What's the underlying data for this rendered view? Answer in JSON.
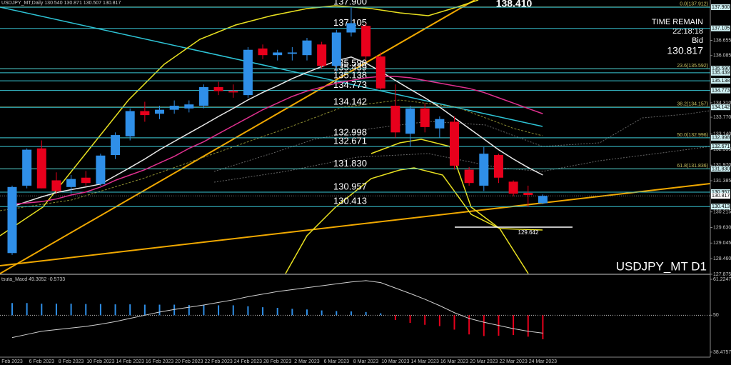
{
  "chart_data": [
    {
      "type": "candlestick",
      "title": "USDJPY_MT,Daily 130.540 130.871 130.507 130.817",
      "symbol_label": "USDJPY_MT D1",
      "info": [
        "TIME REMAIN",
        "22:18:18",
        "Bid"
      ],
      "bid": {
        "value": 130.817,
        "label": "130.817"
      },
      "categories": [
        "Feb 2023",
        null,
        "6 Feb 2023",
        null,
        "8 Feb 2023",
        null,
        "10 Feb 2023",
        null,
        "14 Feb 2023",
        null,
        "16 Feb 2023",
        null,
        "20 Feb 2023",
        null,
        "22 Feb 2023",
        null,
        "24 Feb 2023",
        null,
        "28 Feb 2023",
        null,
        "2 Mar 2023",
        null,
        "6 Mar 2023",
        null,
        "8 Mar 2023",
        null,
        "10 Mar 2023",
        null,
        "14 Mar 2023",
        null,
        "16 Mar 2023",
        null,
        "20 Mar 2023",
        null,
        "22 Mar 2023",
        null,
        "24 Mar 2023"
      ],
      "open": [
        128.67,
        131.2,
        132.6,
        131.4,
        131.15,
        131.5,
        131.26,
        132.35,
        133.05,
        134.0,
        133.9,
        134.05,
        134.1,
        134.2,
        134.9,
        134.75,
        134.6,
        136.35,
        136.1,
        136.15,
        136.1,
        136.5,
        135.7,
        136.95,
        137.2,
        136.05,
        134.2,
        133.15,
        134.1,
        133.35,
        133.6,
        131.8,
        131.2,
        132.35,
        131.35,
        130.93,
        130.54
      ],
      "high": [
        131.2,
        132.6,
        132.9,
        131.7,
        131.6,
        131.75,
        132.4,
        133.2,
        134.1,
        134.35,
        134.2,
        134.4,
        134.4,
        135.0,
        135.1,
        135.0,
        136.4,
        136.5,
        136.3,
        136.4,
        136.75,
        136.6,
        137.05,
        137.9,
        137.3,
        136.2,
        135.0,
        134.2,
        134.3,
        133.8,
        133.8,
        131.9,
        132.65,
        132.4,
        131.4,
        131.2,
        130.871
      ],
      "low": [
        128.6,
        131.1,
        131.1,
        130.9,
        130.9,
        131.2,
        131.2,
        132.2,
        132.9,
        133.6,
        133.7,
        133.9,
        133.95,
        134.1,
        134.6,
        134.5,
        134.5,
        135.95,
        135.9,
        135.9,
        135.9,
        135.6,
        135.5,
        136.8,
        135.9,
        134.8,
        133.0,
        132.65,
        133.2,
        133.0,
        131.8,
        131.2,
        131.0,
        131.3,
        130.8,
        130.4,
        130.507
      ],
      "close": [
        131.15,
        132.55,
        131.1,
        131.0,
        131.45,
        131.3,
        132.33,
        133.1,
        134.0,
        133.85,
        134.05,
        134.2,
        134.25,
        134.9,
        134.75,
        134.7,
        136.3,
        136.1,
        136.2,
        136.2,
        136.65,
        135.7,
        136.95,
        137.3,
        136.05,
        134.85,
        133.2,
        134.1,
        133.4,
        133.7,
        131.95,
        131.3,
        132.4,
        131.5,
        130.9,
        130.85,
        130.817
      ],
      "up_color": "#2f8fe8",
      "down_color": "#e8001c",
      "series": [
        {
          "color": "#e8e8e8",
          "values": [
            130.41,
            130.6,
            130.78,
            130.94,
            131.05,
            131.15,
            131.26,
            131.57,
            131.88,
            132.2,
            132.55,
            132.86,
            133.17,
            133.48,
            133.8,
            134.1,
            134.42,
            134.7,
            134.95,
            135.22,
            135.45,
            135.67,
            135.89,
            136.03,
            135.8,
            135.49,
            135.15,
            134.82,
            134.5,
            134.15,
            133.75,
            133.35,
            132.95,
            132.55,
            132.2,
            131.88,
            131.6
          ]
        },
        {
          "color": "#e0308f",
          "values": [
            130.5,
            130.55,
            130.6,
            130.7,
            130.85,
            130.96,
            131.15,
            131.4,
            131.6,
            131.8,
            132.05,
            132.3,
            132.6,
            132.85,
            133.15,
            133.45,
            133.75,
            134.05,
            134.3,
            134.55,
            134.75,
            134.9,
            135.05,
            135.15,
            135.25,
            135.3,
            135.3,
            135.25,
            135.15,
            135.05,
            134.95,
            134.85,
            134.7,
            134.5,
            134.3,
            134.1,
            133.9
          ]
        }
      ],
      "levels": [
        {
          "value": 137.9,
          "label": "137.900"
        },
        {
          "value": 137.105,
          "label": "137.105"
        },
        {
          "value": 135.59,
          "label": "135.590"
        },
        {
          "value": 135.439,
          "label": "135.439"
        },
        {
          "value": 135.138,
          "label": "135.138"
        },
        {
          "value": 134.773,
          "label": "134.773"
        },
        {
          "value": 134.142,
          "label": "134.142"
        },
        {
          "value": 132.998,
          "label": "132.998"
        },
        {
          "value": 132.671,
          "label": "132.671"
        },
        {
          "value": 131.83,
          "label": "131.830"
        },
        {
          "value": 130.957,
          "label": "130.957"
        },
        {
          "value": 130.413,
          "label": "130.413"
        }
      ],
      "level_color": "#39c6d4",
      "fib_levels": [
        {
          "value": 137.912,
          "label": "0.0(137.912)"
        },
        {
          "value": 135.592,
          "label": "23.6(135.592)"
        },
        {
          "value": 134.157,
          "label": "38.2(134.157)"
        },
        {
          "value": 132.996,
          "label": "50.0(132.996)"
        },
        {
          "value": 131.836,
          "label": "61.8(131.836)"
        }
      ],
      "fib_color": "#c8c060",
      "peak_label": {
        "value": 138.41,
        "label": "138.410"
      },
      "low_mark": {
        "value": 129.642,
        "label": "129.642"
      },
      "ylim": [
        127.9,
        138.17
      ],
      "yticks": [
        136.655,
        136.085,
        {
          "value": 134.31,
          "label": "134.310"
        },
        {
          "value": 133.77,
          "label": "133.770"
        },
        {
          "value": 133.14,
          "label": "133.140"
        },
        132.555,
        {
          "value": 131.97,
          "label": "131.970"
        },
        131.385,
        130.215,
        {
          "value": 129.63,
          "label": "129.630"
        },
        129.045,
        {
          "value": 128.46,
          "label": "128.460"
        },
        127.875
      ]
    },
    {
      "type": "bar",
      "title": "tsuta_Macd 49.3052 -0.5733",
      "values": [
        53.8,
        53.8,
        53.6,
        53.6,
        53.6,
        53.5,
        53.5,
        53.4,
        53.4,
        53.3,
        53.3,
        53.3,
        53.2,
        53.2,
        53.1,
        53.1,
        52.8,
        52.5,
        52.3,
        52.0,
        51.8,
        51.5,
        51.3,
        51.2,
        51.0,
        50.6,
        48.5,
        47.6,
        47.0,
        46.6,
        45.5,
        44.0,
        43.5,
        43.6,
        43.8,
        43.3,
        42.5
      ],
      "line": [
        43.0,
        44.0,
        45.0,
        45.5,
        46.0,
        46.5,
        47.2,
        48.0,
        49.0,
        50.0,
        51.0,
        51.8,
        52.5,
        53.2,
        54.0,
        54.8,
        55.8,
        56.6,
        57.4,
        58.0,
        58.6,
        59.2,
        59.8,
        60.4,
        60.8,
        60.2,
        58.5,
        56.8,
        55.0,
        53.0,
        50.8,
        49.0,
        47.8,
        46.8,
        45.8,
        45.0,
        44.4
      ],
      "up_color": "#2f8fe8",
      "down_color": "#e8001c",
      "line_color": "#d0d0d0",
      "zero_line": 50,
      "ylim": [
        36.9,
        62.57
      ],
      "yticks": [
        61.2247,
        50,
        38.4757
      ]
    }
  ]
}
